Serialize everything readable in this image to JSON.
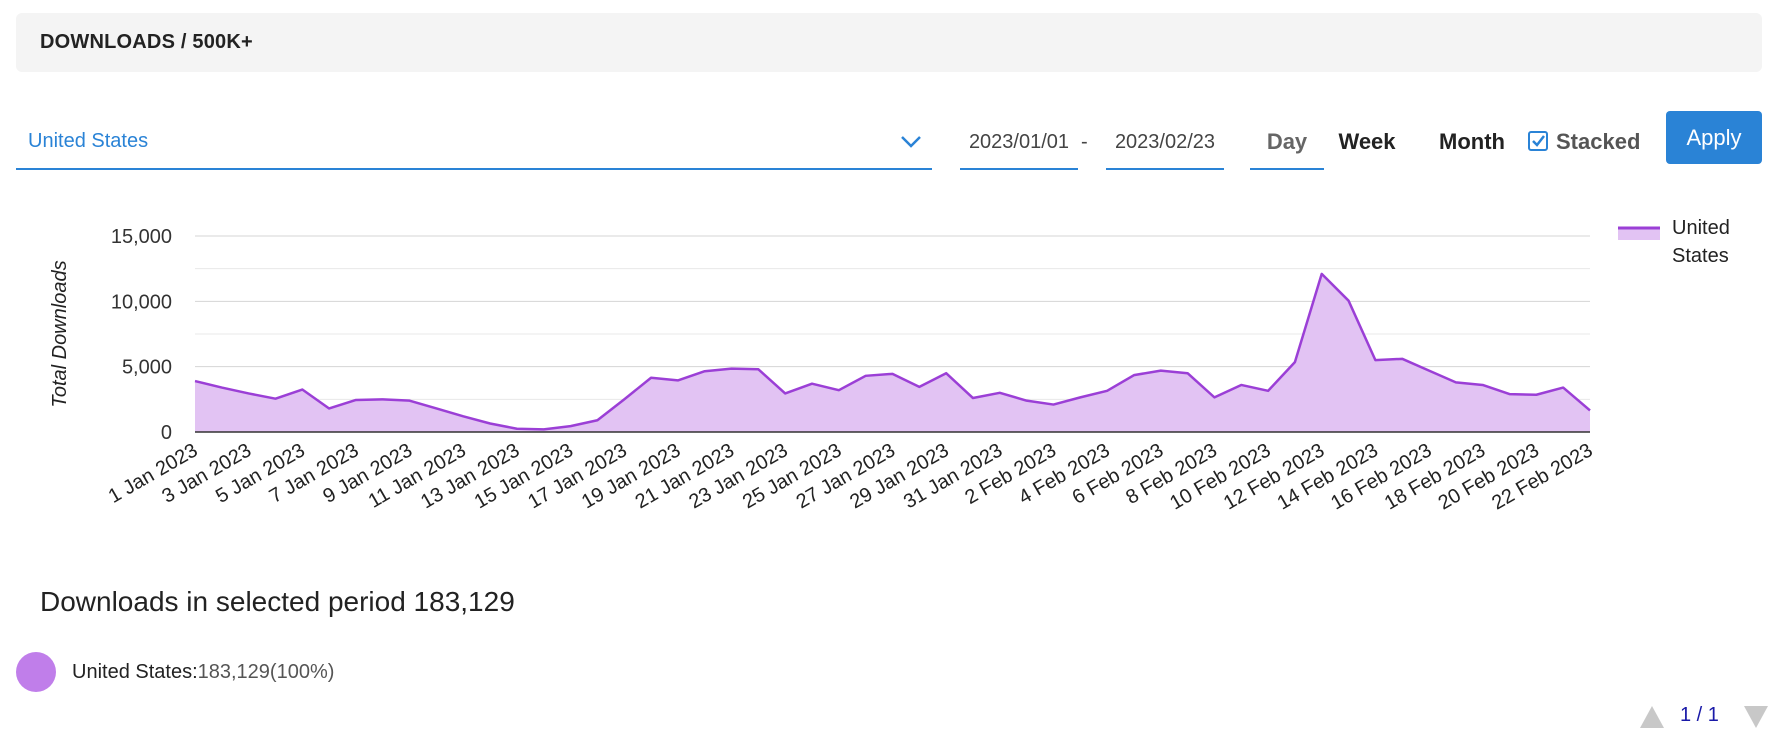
{
  "header": {
    "title": "DOWNLOADS / 500K+"
  },
  "filters": {
    "country": "United States",
    "date_from": "2023/01/01",
    "date_separator": "-",
    "date_to": "2023/02/23",
    "periods": [
      "Day",
      "Week",
      "Month"
    ],
    "active_period": "Day",
    "stacked_label": "Stacked",
    "stacked_checked": true,
    "apply_label": "Apply"
  },
  "colors": {
    "accent": "#2a83d6",
    "series_line": "#9b3fd6",
    "series_fill": "#e2c3f3",
    "legend_dot": "#c07eea"
  },
  "chart_data": {
    "type": "area",
    "ylabel": "Total Downloads",
    "ylim": [
      0,
      15000
    ],
    "yticks": [
      "0",
      "5,000",
      "10,000",
      "15,000"
    ],
    "x_tick_labels": [
      "1 Jan 2023",
      "3 Jan 2023",
      "5 Jan 2023",
      "7 Jan 2023",
      "9 Jan 2023",
      "11 Jan 2023",
      "13 Jan 2023",
      "15 Jan 2023",
      "17 Jan 2023",
      "19 Jan 2023",
      "21 Jan 2023",
      "23 Jan 2023",
      "25 Jan 2023",
      "27 Jan 2023",
      "29 Jan 2023",
      "31 Jan 2023",
      "2 Feb 2023",
      "4 Feb 2023",
      "6 Feb 2023",
      "8 Feb 2023",
      "10 Feb 2023",
      "12 Feb 2023",
      "14 Feb 2023",
      "16 Feb 2023",
      "18 Feb 2023",
      "20 Feb 2023",
      "22 Feb 2023"
    ],
    "legend_position": "top-right",
    "grid": true,
    "series": [
      {
        "name": "United States",
        "values": [
          3900,
          3400,
          2950,
          2550,
          3250,
          1800,
          2450,
          2500,
          2400,
          1800,
          1200,
          650,
          250,
          200,
          450,
          900,
          2500,
          4150,
          3950,
          4650,
          4850,
          4800,
          2950,
          3700,
          3200,
          4300,
          4450,
          3450,
          4500,
          2600,
          3000,
          2400,
          2100,
          2650,
          3150,
          4350,
          4700,
          4500,
          2650,
          3600,
          3150,
          5350,
          12100,
          10050,
          5500,
          5600,
          4700,
          3800,
          3600,
          2900,
          2850,
          3400,
          1650
        ]
      }
    ]
  },
  "summary": {
    "label": "Downloads in selected period 183,129"
  },
  "legend_items": [
    {
      "name": "United States:",
      "value": "183,129(100%)"
    }
  ],
  "pagination": {
    "text": "1 / 1"
  }
}
